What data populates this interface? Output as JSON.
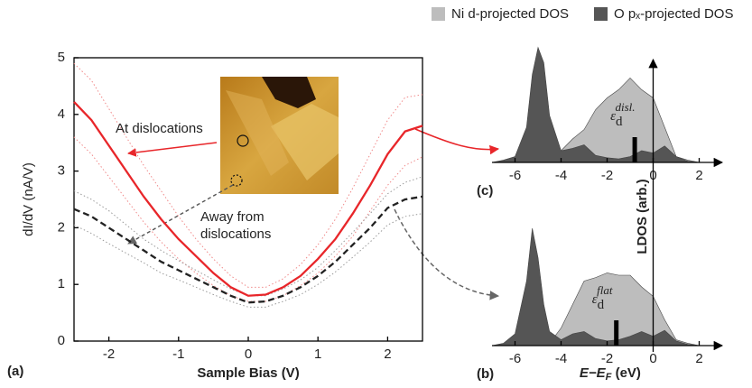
{
  "chart_data": [
    {
      "type": "line",
      "panel_label": "(a)",
      "x_label": "Sample Bias (V)",
      "y_label": "dI/dV (nA/V)",
      "xlim": [
        -2.5,
        2.5
      ],
      "ylim": [
        0,
        5
      ],
      "xticks": [
        -2,
        -1,
        0,
        1,
        2
      ],
      "yticks": [
        0,
        1,
        2,
        3,
        4,
        5
      ],
      "x": [
        -2.5,
        -2.25,
        -2,
        -1.75,
        -1.5,
        -1.25,
        -1,
        -0.75,
        -0.5,
        -0.25,
        0,
        0.25,
        0.5,
        0.75,
        1,
        1.25,
        1.5,
        1.75,
        2,
        2.25,
        2.5
      ],
      "series": [
        {
          "color": "#f08a8a",
          "style": "dotted",
          "values": [
            4.9,
            4.6,
            4.1,
            3.6,
            3.1,
            2.65,
            2.2,
            1.8,
            1.45,
            1.15,
            0.95,
            0.95,
            1.1,
            1.35,
            1.7,
            2.15,
            2.7,
            3.3,
            3.9,
            4.3,
            4.35
          ]
        },
        {
          "color": "#f08a8a",
          "style": "dotted",
          "values": [
            3.6,
            3.3,
            2.9,
            2.5,
            2.1,
            1.75,
            1.45,
            1.2,
            0.98,
            0.8,
            0.7,
            0.7,
            0.8,
            0.98,
            1.2,
            1.5,
            1.85,
            2.3,
            2.75,
            3.1,
            3.25
          ]
        },
        {
          "color": "#9a9a9a",
          "style": "dotted",
          "values": [
            2.65,
            2.5,
            2.3,
            2.05,
            1.8,
            1.6,
            1.42,
            1.25,
            1.08,
            0.92,
            0.8,
            0.8,
            0.92,
            1.08,
            1.3,
            1.6,
            1.92,
            2.25,
            2.6,
            2.8,
            2.9
          ]
        },
        {
          "color": "#9a9a9a",
          "style": "dotted",
          "values": [
            2.05,
            1.9,
            1.72,
            1.55,
            1.38,
            1.2,
            1.08,
            0.95,
            0.82,
            0.7,
            0.6,
            0.6,
            0.7,
            0.82,
            1.0,
            1.22,
            1.48,
            1.75,
            2.05,
            2.2,
            2.25
          ]
        },
        {
          "color": "#e8262a",
          "style": "solid",
          "values": [
            4.22,
            3.9,
            3.45,
            3.0,
            2.55,
            2.15,
            1.8,
            1.5,
            1.2,
            0.95,
            0.8,
            0.82,
            0.95,
            1.15,
            1.45,
            1.8,
            2.25,
            2.75,
            3.3,
            3.7,
            3.8
          ]
        },
        {
          "color": "#222222",
          "style": "dashed",
          "values": [
            2.33,
            2.2,
            2.0,
            1.8,
            1.6,
            1.4,
            1.25,
            1.1,
            0.95,
            0.8,
            0.68,
            0.7,
            0.8,
            0.95,
            1.15,
            1.4,
            1.7,
            2.0,
            2.35,
            2.5,
            2.55
          ]
        }
      ],
      "annotations": [
        "At dislocations",
        "Away from",
        "dislocations"
      ]
    },
    {
      "type": "area",
      "panel_label": "(c)",
      "y_label": "LDOS (arb.)",
      "xlim": [
        -7,
        3
      ],
      "ylim": [
        0,
        1
      ],
      "xticks": [
        -6,
        -4,
        -2,
        0,
        2
      ],
      "x": [
        -7,
        -6.5,
        -6,
        -5.5,
        -5.25,
        -5,
        -4.75,
        -4.5,
        -4,
        -3.5,
        -3,
        -2.5,
        -2,
        -1.5,
        -1,
        -0.5,
        0,
        0.5,
        1,
        1.5,
        2
      ],
      "series": [
        {
          "name": "Ni d-projected DOS",
          "color": "#bdbdbd",
          "values": [
            0,
            0,
            0,
            0,
            0,
            0,
            0,
            0.02,
            0.1,
            0.2,
            0.28,
            0.45,
            0.55,
            0.62,
            0.72,
            0.62,
            0.55,
            0.3,
            0.05,
            0.02,
            0
          ]
        },
        {
          "name": "O pₓ-projected DOS",
          "color": "#555555",
          "values": [
            0,
            0.02,
            0.05,
            0.3,
            0.75,
            0.98,
            0.85,
            0.4,
            0.1,
            0.12,
            0.15,
            0.06,
            0.04,
            0.03,
            0.05,
            0.1,
            0.08,
            0.14,
            0.05,
            0.01,
            0
          ]
        }
      ],
      "d_band_center": {
        "symbol": "ε",
        "sub": "d",
        "sup": "disl.",
        "value": -0.8
      }
    },
    {
      "type": "area",
      "panel_label": "(b)",
      "x_label": [
        "E−E",
        "F",
        " (eV)"
      ],
      "xlim": [
        -7,
        3
      ],
      "ylim": [
        0,
        1
      ],
      "xticks": [
        -6,
        -4,
        -2,
        0,
        2
      ],
      "x": [
        -7,
        -6.5,
        -6,
        -5.5,
        -5.25,
        -5,
        -4.75,
        -4.5,
        -4,
        -3.5,
        -3,
        -2.5,
        -2,
        -1.5,
        -1,
        -0.5,
        0,
        0.5,
        1,
        1.5,
        2
      ],
      "series": [
        {
          "color": "#bdbdbd",
          "values": [
            0,
            0,
            0,
            0,
            0,
            0,
            0,
            0.02,
            0.15,
            0.35,
            0.55,
            0.58,
            0.62,
            0.6,
            0.6,
            0.5,
            0.42,
            0.22,
            0.05,
            0.02,
            0
          ]
        },
        {
          "color": "#555555",
          "values": [
            0,
            0.02,
            0.1,
            0.55,
            1.0,
            0.75,
            0.35,
            0.12,
            0.05,
            0.1,
            0.12,
            0.06,
            0.04,
            0.05,
            0.08,
            0.12,
            0.08,
            0.13,
            0.04,
            0.01,
            0
          ]
        }
      ],
      "d_band_center": {
        "symbol": "ε",
        "sub": "d",
        "sup": "flat",
        "value": -1.6
      }
    }
  ]
}
